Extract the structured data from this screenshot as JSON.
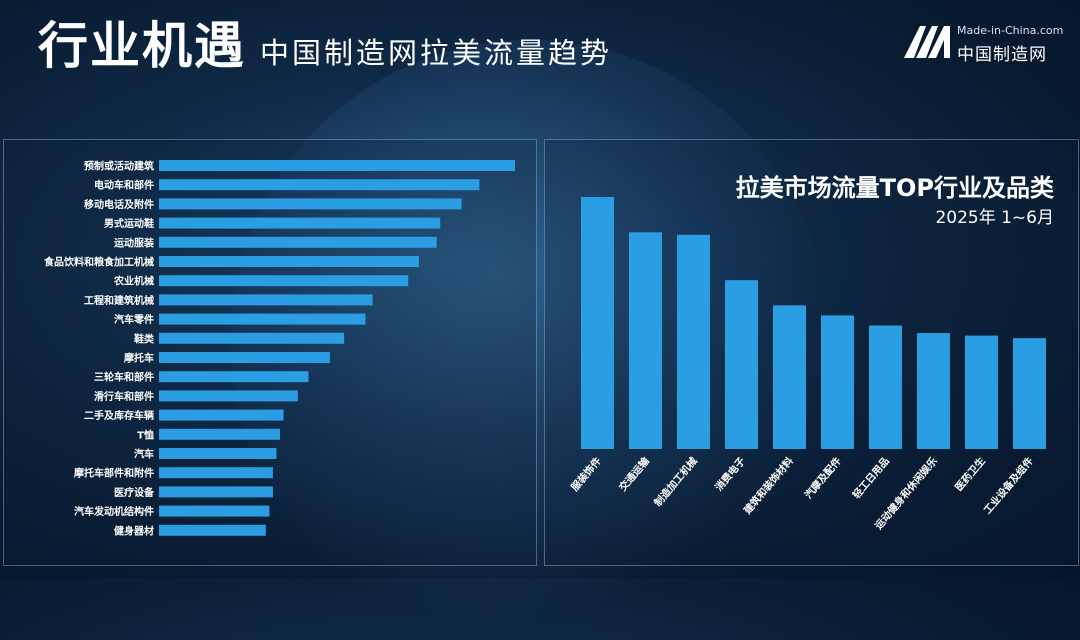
{
  "header": {
    "title": "行业机遇",
    "subtitle": "中国制造网拉美流量趋势"
  },
  "logo": {
    "brand_en": "Made-in-China.com",
    "brand_cn": "中国制造网"
  },
  "colors": {
    "bar": "#2b9de3",
    "text": "#ffffff"
  },
  "chart_data": [
    {
      "type": "bar",
      "orientation": "horizontal",
      "categories": [
        "预制或活动建筑",
        "电动车和部件",
        "移动电话及附件",
        "男式运动鞋",
        "运动服装",
        "食品饮料和粮食加工机械",
        "农业机械",
        "工程和建筑机械",
        "汽车零件",
        "鞋类",
        "摩托车",
        "三轮车和部件",
        "滑行车和部件",
        "二手及库存车辆",
        "T恤",
        "汽车",
        "摩托车部件和附件",
        "医疗设备",
        "汽车发动机结构件",
        "健身器材"
      ],
      "values": [
        100,
        90,
        85,
        79,
        78,
        73,
        70,
        60,
        58,
        52,
        48,
        42,
        39,
        35,
        34,
        33,
        32,
        32,
        31,
        30
      ],
      "xlim": [
        0,
        100
      ]
    },
    {
      "type": "bar",
      "orientation": "vertical",
      "title": "拉美市场流量TOP行业及品类",
      "subtitle": "2025年 1~6月",
      "categories": [
        "服装饰件",
        "交通运输",
        "制造加工机械",
        "消费电子",
        "建筑和装饰材料",
        "汽摩及配件",
        "轻工日用品",
        "运动健身和休闲娱乐",
        "医药卫生",
        "工业设备及组件"
      ],
      "values": [
        100,
        86,
        85,
        67,
        57,
        53,
        49,
        46,
        45,
        44
      ],
      "ylim": [
        0,
        100
      ]
    }
  ]
}
